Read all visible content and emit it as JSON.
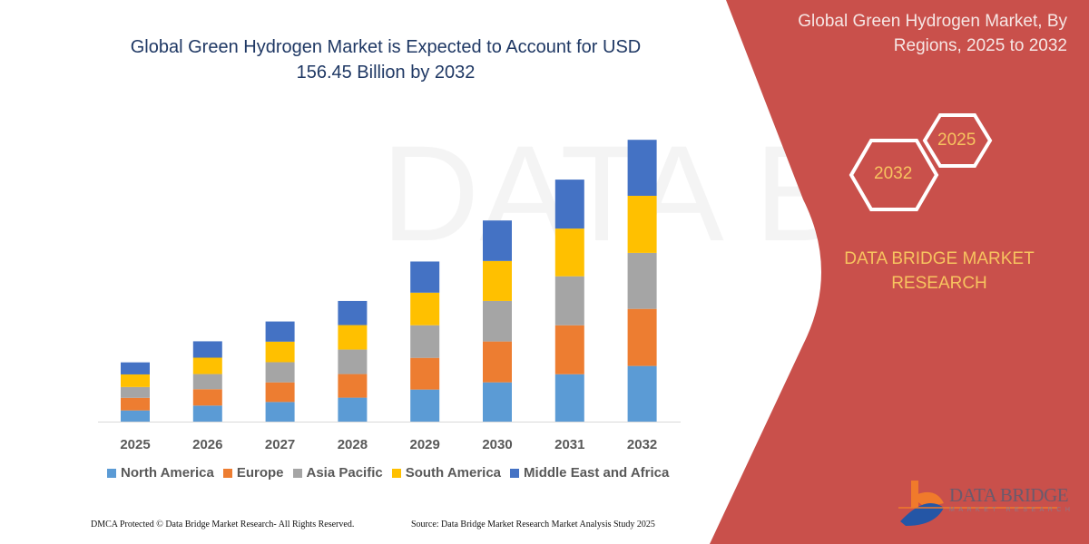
{
  "header": {
    "title_line1": "Global Green Hydrogen Market is Expected to Account for USD",
    "title_line2": "156.45 Billion by 2032"
  },
  "side_panel": {
    "title_line1": "Global Green Hydrogen Market, By",
    "title_line2": "Regions, 2025 to 2032",
    "hex_start": "2025",
    "hex_end": "2032",
    "brand_line1": "DATA BRIDGE MARKET",
    "brand_line2": "RESEARCH",
    "logo_text": "DATA BRIDGE",
    "logo_subtext": "MARKET RESEARCH",
    "panel_color": "#c9504b",
    "accent_text_color": "#f7c35f"
  },
  "footer": {
    "left": "DMCA Protected © Data Bridge Market Research-  All Rights Reserved.",
    "right": "Source: Data Bridge Market Research  Market Analysis Study 2025"
  },
  "chart_data": {
    "type": "bar",
    "stacked": true,
    "title": "Global Green Hydrogen Market is Expected to Account for USD 156.45 Billion by 2032",
    "xlabel": "",
    "ylabel": "",
    "grid": false,
    "y_axis_visible": false,
    "legend_position": "bottom",
    "ylim": [
      0,
      160
    ],
    "categories": [
      "2025",
      "2026",
      "2027",
      "2028",
      "2029",
      "2030",
      "2031",
      "2032"
    ],
    "series": [
      {
        "name": "North America",
        "color": "#5b9bd5",
        "values": [
          6.2,
          8.9,
          10.9,
          13.3,
          17.8,
          21.8,
          26.3,
          30.9
        ]
      },
      {
        "name": "Europe",
        "color": "#ed7d31",
        "values": [
          7.0,
          9.1,
          10.9,
          13.1,
          17.6,
          22.7,
          27.2,
          31.7
        ]
      },
      {
        "name": "Asia Pacific",
        "color": "#a5a5a5",
        "values": [
          6.0,
          8.4,
          11.2,
          13.6,
          18.1,
          22.5,
          27.2,
          31.1
        ]
      },
      {
        "name": "South America",
        "color": "#ffc000",
        "values": [
          7.0,
          9.1,
          11.4,
          13.6,
          18.1,
          22.2,
          26.5,
          31.7
        ]
      },
      {
        "name": "Middle East and Africa",
        "color": "#4472c4",
        "values": [
          6.7,
          9.1,
          11.2,
          13.4,
          17.3,
          22.5,
          27.2,
          31.1
        ]
      }
    ]
  }
}
